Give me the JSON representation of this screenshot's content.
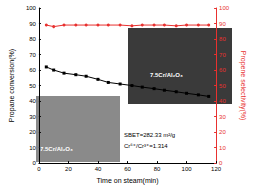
{
  "chart_data": {
    "type": "line",
    "x_label": "Time on steam(min)",
    "y_label": "Propane conversion(%)",
    "y2_label": "Propene selectivity(%)",
    "xlim": [
      0,
      120
    ],
    "xticks": [
      0,
      20,
      40,
      60,
      80,
      100,
      120
    ],
    "ylim": [
      0,
      100
    ],
    "yticks": [
      0,
      10,
      20,
      30,
      40,
      50,
      60,
      70,
      80,
      90,
      100
    ],
    "y2lim": [
      0,
      100
    ],
    "y2ticks": [
      0,
      10,
      20,
      30,
      40,
      50,
      60,
      70,
      80,
      90,
      100
    ],
    "x": [
      5,
      10,
      17,
      25,
      32,
      40,
      47,
      55,
      63,
      70,
      78,
      85,
      93,
      100,
      108,
      115
    ],
    "series": [
      {
        "color": "#000000",
        "marker": "square",
        "line_style": "solid",
        "values": [
          62,
          60,
          58,
          57,
          56,
          54,
          52,
          51,
          50,
          49,
          48,
          47,
          46,
          45,
          44,
          43
        ]
      },
      {
        "color": "#e8312f",
        "marker": "circle",
        "line_style": "solid",
        "axis": "y2",
        "values": [
          89,
          88,
          89,
          89,
          89,
          89,
          89,
          89,
          88.5,
          89,
          89,
          89,
          88.5,
          89,
          89,
          89
        ]
      }
    ],
    "annotations": [
      "7.5Cr/Al₂O₃",
      "7.5Cr/Al₂O₃",
      "SBET=282.33 m²/g",
      "Cr⁶⁺/Cr³⁺=1.314"
    ],
    "grid": false
  }
}
